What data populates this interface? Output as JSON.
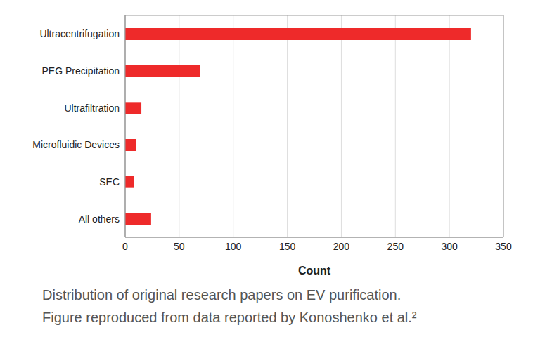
{
  "chart_data": {
    "type": "bar",
    "orientation": "horizontal",
    "categories": [
      "Ultracentrifugation",
      "PEG Precipitation",
      "Ultrafiltration",
      "Microfluidic Devices",
      "SEC",
      "All others"
    ],
    "values": [
      320,
      69,
      15,
      10,
      8,
      24
    ],
    "color": "#ee2a2a",
    "xlim": [
      0,
      350
    ],
    "xticks": [
      0,
      50,
      100,
      150,
      200,
      250,
      300,
      350
    ],
    "grid": true,
    "xlabel": "Count",
    "caption": [
      "Distribution of original research papers on EV purification.",
      "Figure reproduced from data reported by Konoshenko et al.²"
    ]
  }
}
